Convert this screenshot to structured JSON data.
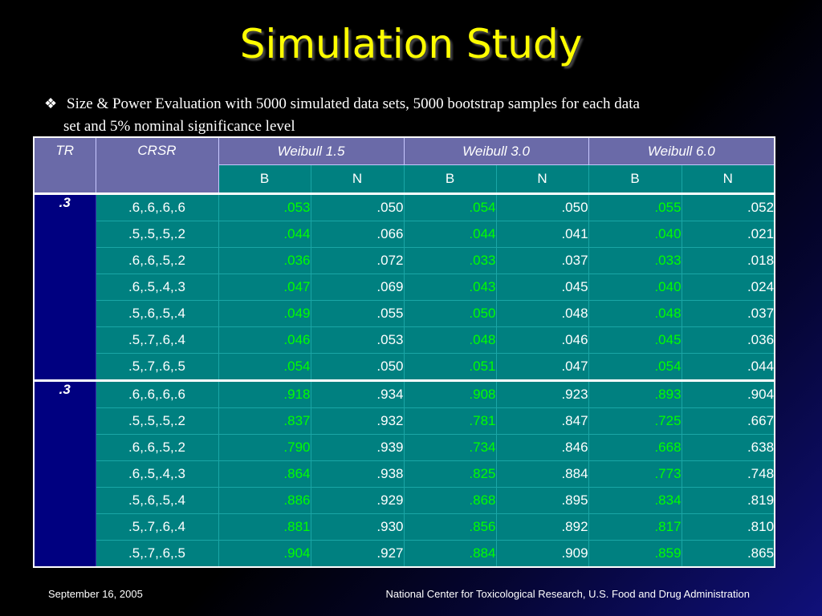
{
  "slide": {
    "title": "Simulation Study",
    "bullet_icon": "diamond-cluster-icon",
    "bullet_line1": "Size & Power Evaluation with 5000 simulated data sets, 5000 bootstrap samples for each data",
    "bullet_line2": "set and 5% nominal significance level"
  },
  "table": {
    "headers": {
      "tr": "TR",
      "crsr": "CRSR",
      "groups": [
        "Weibull 1.5",
        "Weibull 3.0",
        "Weibull 6.0"
      ],
      "sub": [
        "B",
        "N",
        "B",
        "N",
        "B",
        "N"
      ]
    },
    "groups": [
      {
        "tr": ".3",
        "rows": [
          {
            "crsr": ".6,.6,.6,.6",
            "vals": [
              ".053",
              ".050",
              ".054",
              ".050",
              ".055",
              ".052"
            ]
          },
          {
            "crsr": ".5,.5,.5,.2",
            "vals": [
              ".044",
              ".066",
              ".044",
              ".041",
              ".040",
              ".021"
            ]
          },
          {
            "crsr": ".6,.6,.5,.2",
            "vals": [
              ".036",
              ".072",
              ".033",
              ".037",
              ".033",
              ".018"
            ]
          },
          {
            "crsr": ".6,.5,.4,.3",
            "vals": [
              ".047",
              ".069",
              ".043",
              ".045",
              ".040",
              ".024"
            ]
          },
          {
            "crsr": ".5,.6,.5,.4",
            "vals": [
              ".049",
              ".055",
              ".050",
              ".048",
              ".048",
              ".037"
            ]
          },
          {
            "crsr": ".5,.7,.6,.4",
            "vals": [
              ".046",
              ".053",
              ".048",
              ".046",
              ".045",
              ".036"
            ]
          },
          {
            "crsr": ".5,.7,.6,.5",
            "vals": [
              ".054",
              ".050",
              ".051",
              ".047",
              ".054",
              ".044"
            ]
          }
        ]
      },
      {
        "tr": ".3",
        "rows": [
          {
            "crsr": ".6,.6,.6,.6",
            "vals": [
              ".918",
              ".934",
              ".908",
              ".923",
              ".893",
              ".904"
            ]
          },
          {
            "crsr": ".5,.5,.5,.2",
            "vals": [
              ".837",
              ".932",
              ".781",
              ".847",
              ".725",
              ".667"
            ]
          },
          {
            "crsr": ".6,.6,.5,.2",
            "vals": [
              ".790",
              ".939",
              ".734",
              ".846",
              ".668",
              ".638"
            ]
          },
          {
            "crsr": ".6,.5,.4,.3",
            "vals": [
              ".864",
              ".938",
              ".825",
              ".884",
              ".773",
              ".748"
            ]
          },
          {
            "crsr": ".5,.6,.5,.4",
            "vals": [
              ".886",
              ".929",
              ".868",
              ".895",
              ".834",
              ".819"
            ]
          },
          {
            "crsr": ".5,.7,.6,.4",
            "vals": [
              ".881",
              ".930",
              ".856",
              ".892",
              ".817",
              ".810"
            ]
          },
          {
            "crsr": ".5,.7,.6,.5",
            "vals": [
              ".904",
              ".927",
              ".884",
              ".909",
              ".859",
              ".865"
            ]
          }
        ]
      }
    ]
  },
  "footer": {
    "date": "September 16, 2005",
    "org": "National Center for Toxicological Research, U.S. Food and Drug Administration"
  }
}
